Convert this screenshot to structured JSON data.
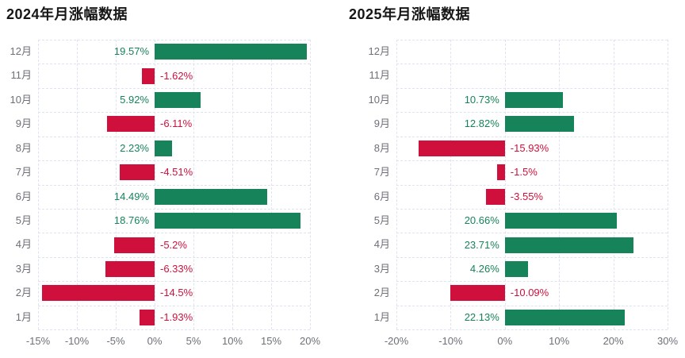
{
  "page": {
    "background": "#ffffff"
  },
  "chart_data": [
    {
      "type": "bar",
      "orientation": "horizontal",
      "title": "2024年月涨幅数据",
      "categories": [
        "12月",
        "11月",
        "10月",
        "9月",
        "8月",
        "7月",
        "6月",
        "5月",
        "4月",
        "3月",
        "2月",
        "1月"
      ],
      "values": [
        19.57,
        -1.62,
        5.92,
        -6.11,
        2.23,
        -4.51,
        14.49,
        18.76,
        -5.2,
        -6.33,
        -14.5,
        -1.93
      ],
      "labels": [
        "19.57%",
        "-1.62%",
        "5.92%",
        "-6.11%",
        "2.23%",
        "-4.51%",
        "14.49%",
        "18.76%",
        "-5.2%",
        "-6.33%",
        "-14.5%",
        "-1.93%"
      ],
      "xlabel": "",
      "ylabel": "",
      "xlim": [
        -15,
        20
      ],
      "x_ticks": [
        {
          "value": -15,
          "label": "-15%"
        },
        {
          "value": -10,
          "label": "-10%"
        },
        {
          "value": -5,
          "label": "-5%"
        },
        {
          "value": 0,
          "label": "0%"
        },
        {
          "value": 5,
          "label": "5%"
        },
        {
          "value": 10,
          "label": "10%"
        },
        {
          "value": 15,
          "label": "15%"
        },
        {
          "value": 20,
          "label": "20%"
        }
      ],
      "grid": true,
      "legend": false,
      "positive_color": "#17835a",
      "negative_color": "#d0103c",
      "axis_label_color": "#6e7079",
      "gridline_color": "#dde3f0"
    },
    {
      "type": "bar",
      "orientation": "horizontal",
      "title": "2025年月涨幅数据",
      "categories": [
        "12月",
        "11月",
        "10月",
        "9月",
        "8月",
        "7月",
        "6月",
        "5月",
        "4月",
        "3月",
        "2月",
        "1月"
      ],
      "values": [
        null,
        null,
        10.73,
        12.82,
        -15.93,
        -1.5,
        -3.55,
        20.66,
        23.71,
        4.26,
        -10.09,
        22.13
      ],
      "labels": [
        "",
        "",
        "10.73%",
        "12.82%",
        "-15.93%",
        "-1.5%",
        "-3.55%",
        "20.66%",
        "23.71%",
        "4.26%",
        "-10.09%",
        "22.13%"
      ],
      "xlabel": "",
      "ylabel": "",
      "xlim": [
        -20,
        30
      ],
      "x_ticks": [
        {
          "value": -20,
          "label": "-20%"
        },
        {
          "value": -10,
          "label": "-10%"
        },
        {
          "value": 0,
          "label": "0%"
        },
        {
          "value": 10,
          "label": "10%"
        },
        {
          "value": 20,
          "label": "20%"
        },
        {
          "value": 30,
          "label": "30%"
        }
      ],
      "grid": true,
      "legend": false,
      "positive_color": "#17835a",
      "negative_color": "#d0103c",
      "axis_label_color": "#6e7079",
      "gridline_color": "#dde3f0"
    }
  ]
}
